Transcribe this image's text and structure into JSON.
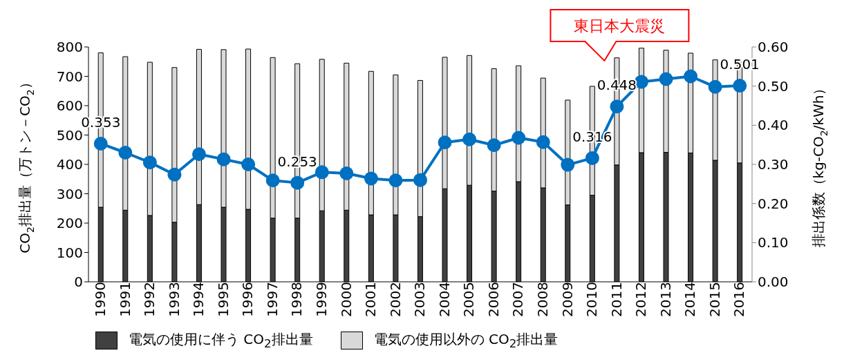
{
  "chart_data": {
    "type": "bar",
    "stacked": true,
    "categories": [
      "1990",
      "1991",
      "1992",
      "1993",
      "1994",
      "1995",
      "1996",
      "1997",
      "1998",
      "1999",
      "2000",
      "2001",
      "2002",
      "2003",
      "2004",
      "2005",
      "2006",
      "2007",
      "2008",
      "2009",
      "2010",
      "2011",
      "2012",
      "2013",
      "2014",
      "2015",
      "2016"
    ],
    "series": [
      {
        "name": "電気の使用に伴う CO$_{2}$排出量",
        "color": "#404040",
        "values": [
          254,
          244,
          226,
          203,
          263,
          254,
          247,
          217,
          217,
          242,
          244,
          228,
          228,
          222,
          317,
          329,
          309,
          341,
          320,
          262,
          295,
          398,
          440,
          441,
          439,
          414,
          405
        ]
      },
      {
        "name": "電気の使用以外の CO$_{2}$排出量",
        "color": "#d9d9d9",
        "values": [
          526,
          523,
          522,
          527,
          529,
          537,
          546,
          547,
          526,
          516,
          501,
          489,
          477,
          464,
          448,
          442,
          417,
          395,
          374,
          357,
          371,
          365,
          356,
          348,
          340,
          342,
          344
        ]
      },
      {
        "type": "line",
        "axis": "y2",
        "color": "#0070c0",
        "values": [
          0.353,
          0.33,
          0.305,
          0.274,
          0.326,
          0.313,
          0.3,
          0.259,
          0.253,
          0.28,
          0.277,
          0.264,
          0.259,
          0.26,
          0.356,
          0.364,
          0.349,
          0.368,
          0.357,
          0.299,
          0.316,
          0.448,
          0.511,
          0.518,
          0.525,
          0.498,
          0.501
        ],
        "value_labels": [
          "0.353",
          null,
          null,
          null,
          null,
          null,
          null,
          null,
          "0.253",
          null,
          null,
          null,
          null,
          null,
          null,
          null,
          null,
          null,
          null,
          null,
          "0.316",
          "0.448",
          null,
          null,
          null,
          null,
          "0.501"
        ]
      }
    ],
    "ylabel": "CO$_{2}$排出量（万トン－CO$_{2}$）",
    "y2label": "排出係数（kg-CO$_{2}$/kWh）",
    "ylim": [
      0,
      800
    ],
    "yticks": [
      0,
      100,
      200,
      300,
      400,
      500,
      600,
      700,
      800
    ],
    "y2lim": [
      0,
      0.6
    ],
    "y2ticks": [
      {
        "value": 0,
        "label": "0.00"
      },
      {
        "value": 0.1,
        "label": "0.10"
      },
      {
        "value": 0.2,
        "label": "0.20"
      },
      {
        "value": 0.3,
        "label": "0.30"
      },
      {
        "value": 0.4,
        "label": "0.40"
      },
      {
        "value": 0.5,
        "label": "0.50"
      },
      {
        "value": 0.6,
        "label": "0.60"
      }
    ],
    "marker": "circle",
    "legend": "bottom",
    "grid": false,
    "annotations": [
      "東日本大震災"
    ]
  }
}
